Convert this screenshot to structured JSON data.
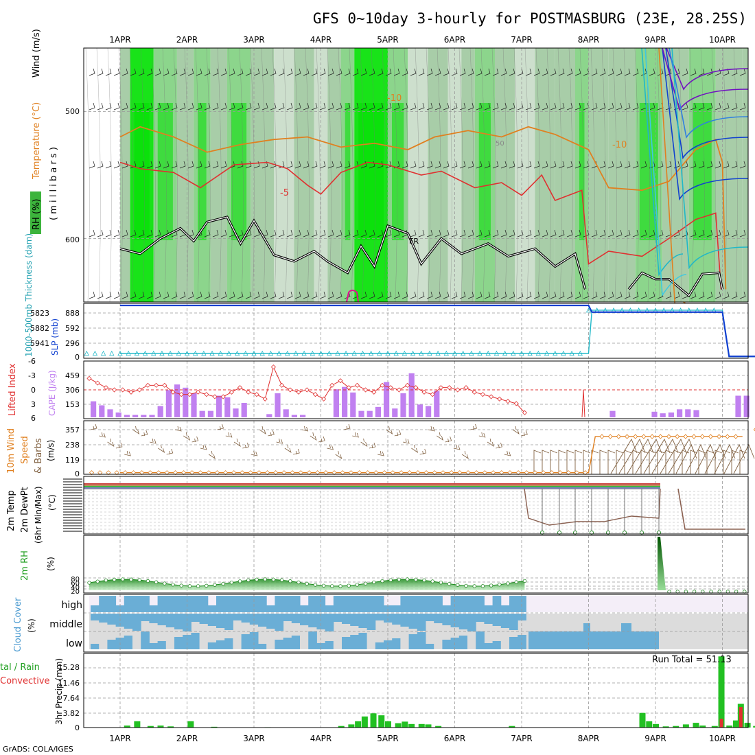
{
  "title": "GFS 0~10day 3-hourly for POSTMASBURG (23E, 28.25S)",
  "credit": "GrADS: COLA/IGES",
  "colors": {
    "rh_green": "#00e000",
    "rh_mid": "#7fd07f",
    "rh_light": "#c8dcc8",
    "temp_red": "#e03030",
    "temp_orange": "#e08020",
    "freeze": "#000000",
    "cyan": "#20b8c8",
    "blue": "#1040d0",
    "cape": "#c080f0",
    "li_red": "#e03030",
    "wind_orange": "#e08020",
    "barb": "#806040",
    "cloud_blue": "#6aaed6",
    "cloud_gray": "#dcdcdc",
    "cloud_lav": "#f4eef8",
    "precip_green": "#22c022",
    "precip_red": "#e03030"
  },
  "chart_data": [
    {
      "type": "heatmap",
      "panel": "upper_air",
      "x_labels": [
        "1APR",
        "2APR",
        "3APR",
        "4APR",
        "5APR",
        "6APR",
        "7APR",
        "8APR",
        "9APR",
        "10APR"
      ],
      "ylabel_parts": [
        "RH (%)",
        "Temperature (°C)",
        "Wind (m/s)"
      ],
      "ylabel_units": "( m i l l i b a r s )",
      "y_ticks": [
        "500",
        "600"
      ],
      "ylim": [
        650,
        450
      ],
      "contour_labels": [
        "-10",
        "-10",
        "-5",
        "FR",
        "50"
      ],
      "temp_minus10": [
        [
          0,
          520
        ],
        [
          0.3,
          512
        ],
        [
          0.8,
          520
        ],
        [
          1.3,
          532
        ],
        [
          1.8,
          526
        ],
        [
          2.3,
          522
        ],
        [
          2.8,
          520
        ],
        [
          3.3,
          528
        ],
        [
          3.8,
          525
        ],
        [
          4.3,
          530
        ],
        [
          4.7,
          520
        ],
        [
          5.2,
          515
        ],
        [
          5.7,
          520
        ],
        [
          6.1,
          512
        ],
        [
          6.5,
          518
        ],
        [
          7.0,
          530
        ],
        [
          7.3,
          560
        ],
        [
          7.8,
          562
        ],
        [
          8.2,
          555
        ],
        [
          8.6,
          530
        ],
        [
          8.9,
          522
        ],
        [
          9.0,
          540
        ],
        [
          9.05,
          640
        ]
      ],
      "temp_minus5": [
        [
          0,
          540
        ],
        [
          0.3,
          545
        ],
        [
          0.8,
          548
        ],
        [
          1.2,
          560
        ],
        [
          1.7,
          542
        ],
        [
          2.2,
          540
        ],
        [
          2.5,
          545
        ],
        [
          2.8,
          558
        ],
        [
          3.0,
          565
        ],
        [
          3.3,
          548
        ],
        [
          3.7,
          540
        ],
        [
          4.0,
          542
        ],
        [
          4.5,
          550
        ],
        [
          4.8,
          547
        ],
        [
          5.3,
          560
        ],
        [
          5.7,
          556
        ],
        [
          6.0,
          566
        ],
        [
          6.3,
          550
        ],
        [
          6.5,
          570
        ],
        [
          6.9,
          562
        ],
        [
          7.0,
          620
        ],
        [
          7.3,
          610
        ],
        [
          7.8,
          614
        ],
        [
          8.2,
          600
        ],
        [
          8.6,
          585
        ],
        [
          8.9,
          580
        ],
        [
          8.98,
          640
        ]
      ],
      "freezing_level": [
        [
          0,
          608
        ],
        [
          0.3,
          612
        ],
        [
          0.6,
          600
        ],
        [
          0.9,
          592
        ],
        [
          1.1,
          602
        ],
        [
          1.3,
          587
        ],
        [
          1.6,
          583
        ],
        [
          1.8,
          604
        ],
        [
          2.0,
          586
        ],
        [
          2.3,
          613
        ],
        [
          2.6,
          618
        ],
        [
          2.9,
          610
        ],
        [
          3.1,
          618
        ],
        [
          3.4,
          627
        ],
        [
          3.6,
          606
        ],
        [
          3.8,
          622
        ],
        [
          4.0,
          590
        ],
        [
          4.3,
          596
        ],
        [
          4.5,
          620
        ],
        [
          4.8,
          600
        ],
        [
          5.1,
          612
        ],
        [
          5.5,
          604
        ],
        [
          5.8,
          614
        ],
        [
          6.2,
          608
        ],
        [
          6.5,
          622
        ],
        [
          6.8,
          612
        ],
        [
          6.95,
          640
        ]
      ],
      "freezing_level_late": [
        [
          7.6,
          640
        ],
        [
          7.8,
          627
        ],
        [
          8.0,
          632
        ],
        [
          8.2,
          632
        ],
        [
          8.5,
          645
        ],
        [
          8.7,
          628
        ],
        [
          8.95,
          627
        ],
        [
          9.0,
          640
        ]
      ]
    },
    {
      "type": "line",
      "panel": "slp_thickness",
      "ylabel_left": "1000-500mb Thickness (dam)",
      "ylabel_right": "SLP (mb)",
      "y_ticks_thick": [
        "5823",
        "5882",
        "5941"
      ],
      "y_ticks_slp": [
        "888",
        "592",
        "296",
        "0"
      ],
      "thickness": [
        [
          0,
          73
        ],
        [
          7.0,
          73
        ],
        [
          7.05,
          945
        ],
        [
          9.0,
          945
        ],
        [
          9.1,
          5
        ],
        [
          10.3,
          5
        ]
      ],
      "slp": [
        [
          0,
          1000
        ],
        [
          7.0,
          1000
        ],
        [
          7.05,
          870
        ],
        [
          9.0,
          870
        ],
        [
          9.1,
          10
        ],
        [
          10.3,
          10
        ]
      ]
    },
    {
      "type": "bar",
      "panel": "lifted_cape",
      "ylabel_left": "Lifted Index",
      "ylabel_right": "CAPE (J/kg)",
      "y_ticks_li": [
        "-6",
        "-3",
        "0",
        "3",
        "6"
      ],
      "y_ticks_cape": [
        "459",
        "306",
        "153"
      ],
      "cape": [
        200,
        150,
        100,
        60,
        30,
        30,
        30,
        30,
        140,
        340,
        410,
        370,
        300,
        80,
        80,
        270,
        250,
        110,
        180,
        0,
        0,
        40,
        300,
        100,
        30,
        30,
        0,
        0,
        0,
        350,
        380,
        310,
        80,
        80,
        130,
        440,
        110,
        300,
        550,
        160,
        140,
        330,
        0,
        0,
        0,
        0,
        0,
        0,
        0,
        0,
        0,
        0,
        0,
        0,
        0,
        0,
        0,
        0,
        0,
        0,
        0,
        0,
        80,
        0,
        0,
        0,
        0,
        70,
        50,
        60,
        100,
        100,
        90,
        0,
        0,
        0,
        0,
        270,
        270,
        270,
        270,
        270,
        270,
        270,
        270,
        270,
        270,
        270
      ],
      "lifted_index": [
        -2.5,
        -1.5,
        -0.5,
        0,
        0,
        0.5,
        0,
        -1,
        -1,
        -1,
        0.5,
        1,
        1,
        0.5,
        1,
        1.5,
        1.5,
        0.5,
        -0.5,
        0.5,
        1,
        2,
        -5,
        -1,
        0,
        0.5,
        0,
        1,
        2,
        -1,
        -2,
        -0.5,
        -1,
        0,
        0.5,
        -1,
        -0.5,
        0,
        -1,
        -0.5,
        0.5,
        1,
        -0.5,
        -0.5,
        0,
        -0.5,
        0.5,
        1,
        1.5,
        2,
        2.5,
        3,
        5
      ]
    },
    {
      "type": "line",
      "panel": "wind10m",
      "ylabel": [
        "10m Wind",
        "Speed",
        "& Barbs"
      ],
      "ylabel_units": "(m/s)",
      "y_ticks": [
        "357",
        "238",
        "119",
        "0"
      ],
      "speed": [
        [
          0,
          2
        ],
        [
          7.0,
          2
        ],
        [
          7.1,
          300
        ],
        [
          9.3,
          300
        ]
      ],
      "isolated_points": [
        [
          9.5,
          357
        ],
        [
          9.75,
          357
        ],
        [
          10.0,
          357
        ],
        [
          10.25,
          357
        ]
      ]
    },
    {
      "type": "line",
      "panel": "temp2m",
      "ylabel": [
        "2m Temp",
        "2m DewPt",
        "(6hr Min/Max)"
      ],
      "ylabel_units": "(°C)"
    },
    {
      "type": "area",
      "panel": "rh2m",
      "ylabel": "2m RH",
      "ylabel_units": "(%)",
      "y_ticks": [
        "80",
        "60",
        "40",
        "20"
      ]
    },
    {
      "type": "heatmap",
      "panel": "cloud",
      "ylabel": "Cloud Cover",
      "ylabel_units": "(%)",
      "y_ticks": [
        "high",
        "middle",
        "low"
      ]
    },
    {
      "type": "bar",
      "panel": "precip",
      "ylabel_left": [
        "tal / Rain",
        "Convective"
      ],
      "ylabel_right": "3hr Precip (mm)",
      "y_ticks": [
        "15.28",
        "11.46",
        "7.64",
        "3.82",
        "0"
      ],
      "annotation": "Run Total = 51.13",
      "total": [
        [
          0.1,
          0.5
        ],
        [
          0.25,
          1.6
        ],
        [
          0.45,
          0.4
        ],
        [
          0.6,
          0.5
        ],
        [
          0.75,
          0.3
        ],
        [
          1.05,
          1.6
        ],
        [
          1.4,
          0.2
        ],
        [
          2.2,
          0.1
        ],
        [
          3.3,
          0.4
        ],
        [
          3.45,
          0.8
        ],
        [
          3.55,
          1.6
        ],
        [
          3.65,
          2.8
        ],
        [
          3.78,
          3.6
        ],
        [
          3.9,
          3.1
        ],
        [
          4.0,
          1.6
        ],
        [
          4.15,
          1.1
        ],
        [
          4.25,
          1.5
        ],
        [
          4.35,
          0.9
        ],
        [
          4.5,
          0.9
        ],
        [
          4.6,
          0.8
        ],
        [
          4.75,
          0.4
        ],
        [
          5.85,
          0.4
        ],
        [
          7.8,
          3.7
        ],
        [
          7.9,
          1.6
        ],
        [
          8.0,
          0.9
        ],
        [
          8.15,
          0.3
        ],
        [
          8.3,
          0.4
        ],
        [
          8.45,
          0.8
        ],
        [
          8.6,
          1.2
        ],
        [
          8.7,
          0.5
        ],
        [
          8.88,
          0.4
        ],
        [
          8.98,
          18.0
        ],
        [
          9.1,
          0.5
        ],
        [
          9.2,
          1.8
        ],
        [
          9.27,
          6.0
        ],
        [
          9.37,
          1.2
        ],
        [
          9.5,
          0.4
        ]
      ],
      "convective": [
        [
          8.98,
          2.2
        ],
        [
          9.27,
          5.2
        ]
      ]
    }
  ]
}
